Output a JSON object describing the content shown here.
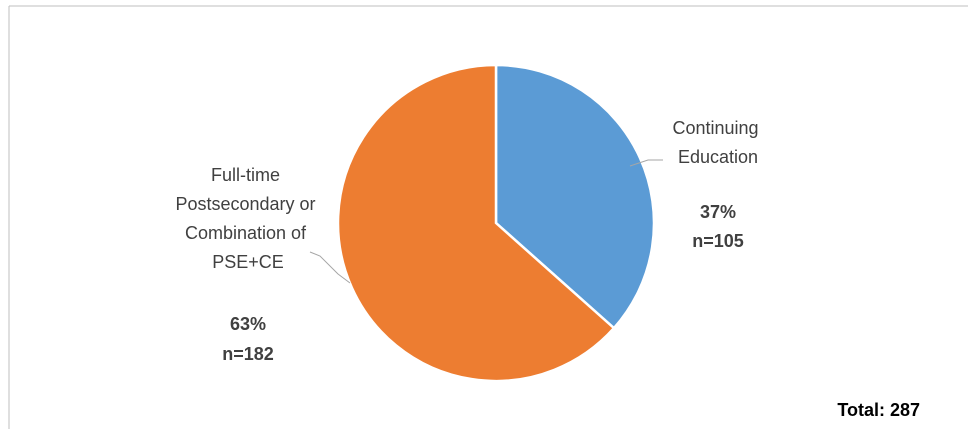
{
  "chart_data": {
    "type": "pie",
    "title": "",
    "categories": [
      "Continuing Education",
      "Full-time Postsecondary or Combination of PSE+CE"
    ],
    "values": [
      105,
      182
    ],
    "percent_labels": [
      "37%",
      "63%"
    ],
    "count_labels": [
      "n=105",
      "n=182"
    ],
    "colors": [
      "#5b9bd5",
      "#ed7d31"
    ],
    "start_angle_deg": 0,
    "direction": "clockwise",
    "legend": "none",
    "total_label": "Total: 287"
  },
  "labels": {
    "slice0": [
      "Continuing",
      "Education"
    ],
    "slice1": [
      "Full-time",
      "Postsecondary or",
      "Combination of",
      "PSE+CE"
    ]
  }
}
